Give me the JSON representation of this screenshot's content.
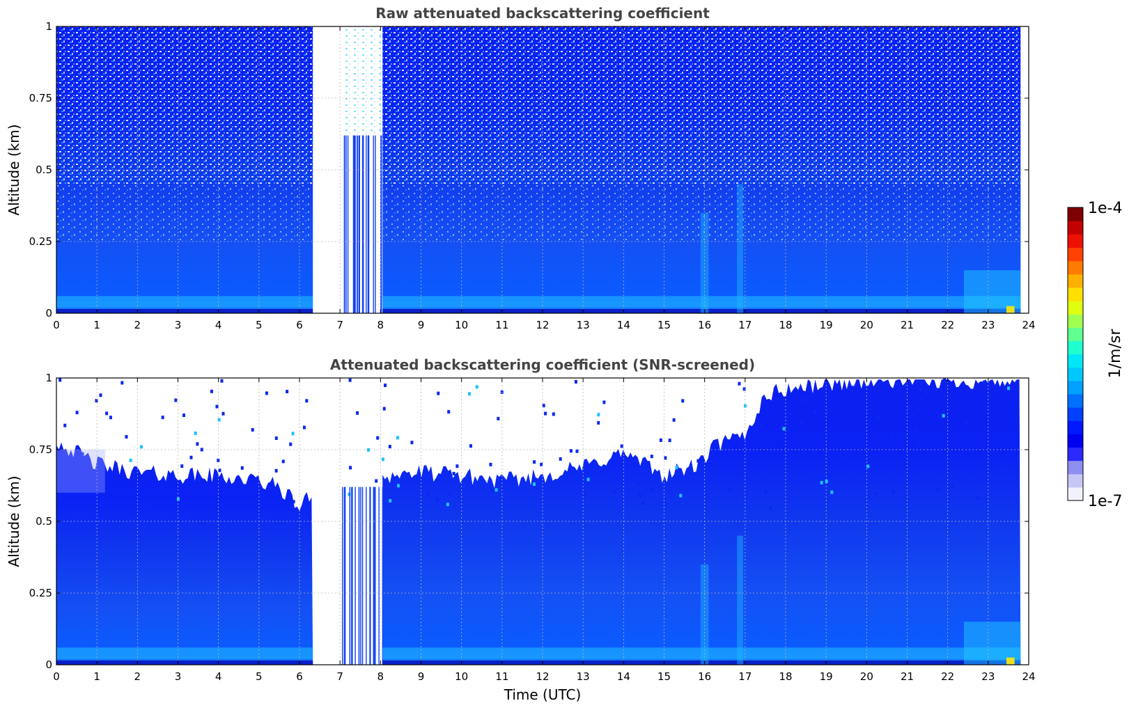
{
  "chart_data": [
    {
      "type": "heatmap",
      "title": "Raw attenuated backscattering coefficient",
      "xlabel": "",
      "ylabel": "Altitude (km)",
      "xlim": [
        0,
        24
      ],
      "ylim": [
        0,
        1
      ],
      "x_ticks": [
        "0",
        "1",
        "2",
        "3",
        "4",
        "5",
        "6",
        "7",
        "8",
        "9",
        "10",
        "11",
        "12",
        "13",
        "14",
        "15",
        "16",
        "17",
        "18",
        "19",
        "20",
        "21",
        "22",
        "23",
        "24"
      ],
      "y_ticks": [
        "0",
        "0.25",
        "0.5",
        "0.75",
        "1"
      ],
      "grid": true,
      "data_gaps_utc": [
        [
          6.33,
          7.05
        ]
      ],
      "sparse_columns_utc": [
        [
          7.05,
          8.05
        ]
      ],
      "data_end_utc": 23.8,
      "noise_above_km": 0.45,
      "enhanced_backscatter_utc": [
        [
          15.9,
          16.1
        ],
        [
          16.8,
          16.95
        ],
        [
          23.2,
          23.8
        ]
      ],
      "surface_layer_km": [
        0,
        0.06
      ]
    },
    {
      "type": "heatmap",
      "title": "Attenuated backscattering coefficient (SNR-screened)",
      "xlabel": "Time (UTC)",
      "ylabel": "Altitude (km)",
      "xlim": [
        0,
        24
      ],
      "ylim": [
        0,
        1
      ],
      "x_ticks": [
        "0",
        "1",
        "2",
        "3",
        "4",
        "5",
        "6",
        "7",
        "8",
        "9",
        "10",
        "11",
        "12",
        "13",
        "14",
        "15",
        "16",
        "17",
        "18",
        "19",
        "20",
        "21",
        "22",
        "23",
        "24"
      ],
      "y_ticks": [
        "0",
        "0.25",
        "0.5",
        "0.75",
        "1"
      ],
      "grid": true,
      "data_gaps_utc": [
        [
          6.33,
          7.05
        ]
      ],
      "sparse_columns_utc": [
        [
          7.05,
          8.05
        ]
      ],
      "data_end_utc": 23.8,
      "screened_top_km": {
        "time": [
          0,
          0.5,
          1,
          2,
          3,
          4,
          5,
          5.5,
          6,
          6.33,
          7.1,
          8,
          9,
          10,
          11,
          12,
          13,
          14,
          15,
          15.9,
          16.2,
          17,
          17.5,
          18,
          19,
          20,
          21,
          22,
          23,
          23.8
        ],
        "altitude": [
          0.78,
          0.74,
          0.7,
          0.67,
          0.66,
          0.66,
          0.64,
          0.62,
          0.55,
          0.6,
          0.64,
          0.66,
          0.67,
          0.66,
          0.64,
          0.66,
          0.69,
          0.74,
          0.66,
          0.7,
          0.76,
          0.8,
          0.94,
          0.96,
          0.98,
          0.99,
          0.99,
          0.99,
          0.99,
          0.99
        ]
      }
    }
  ],
  "colorbar": {
    "label": "1/m/sr",
    "max_label": "1e-4",
    "min_label": "1e-7",
    "scale": "log",
    "range": [
      1e-07,
      0.0001
    ],
    "colors": [
      "#f2f2ff",
      "#c7c7f6",
      "#8f8ff0",
      "#2a2aff",
      "#0000f0",
      "#0018ff",
      "#0040ff",
      "#0070ff",
      "#00a0ff",
      "#00c8ff",
      "#00e8f8",
      "#20ffd0",
      "#60ff90",
      "#a0ff50",
      "#e0ff10",
      "#ffe000",
      "#ffb000",
      "#ff7a00",
      "#ff4000",
      "#ee1000",
      "#c40000",
      "#7f0000"
    ]
  }
}
